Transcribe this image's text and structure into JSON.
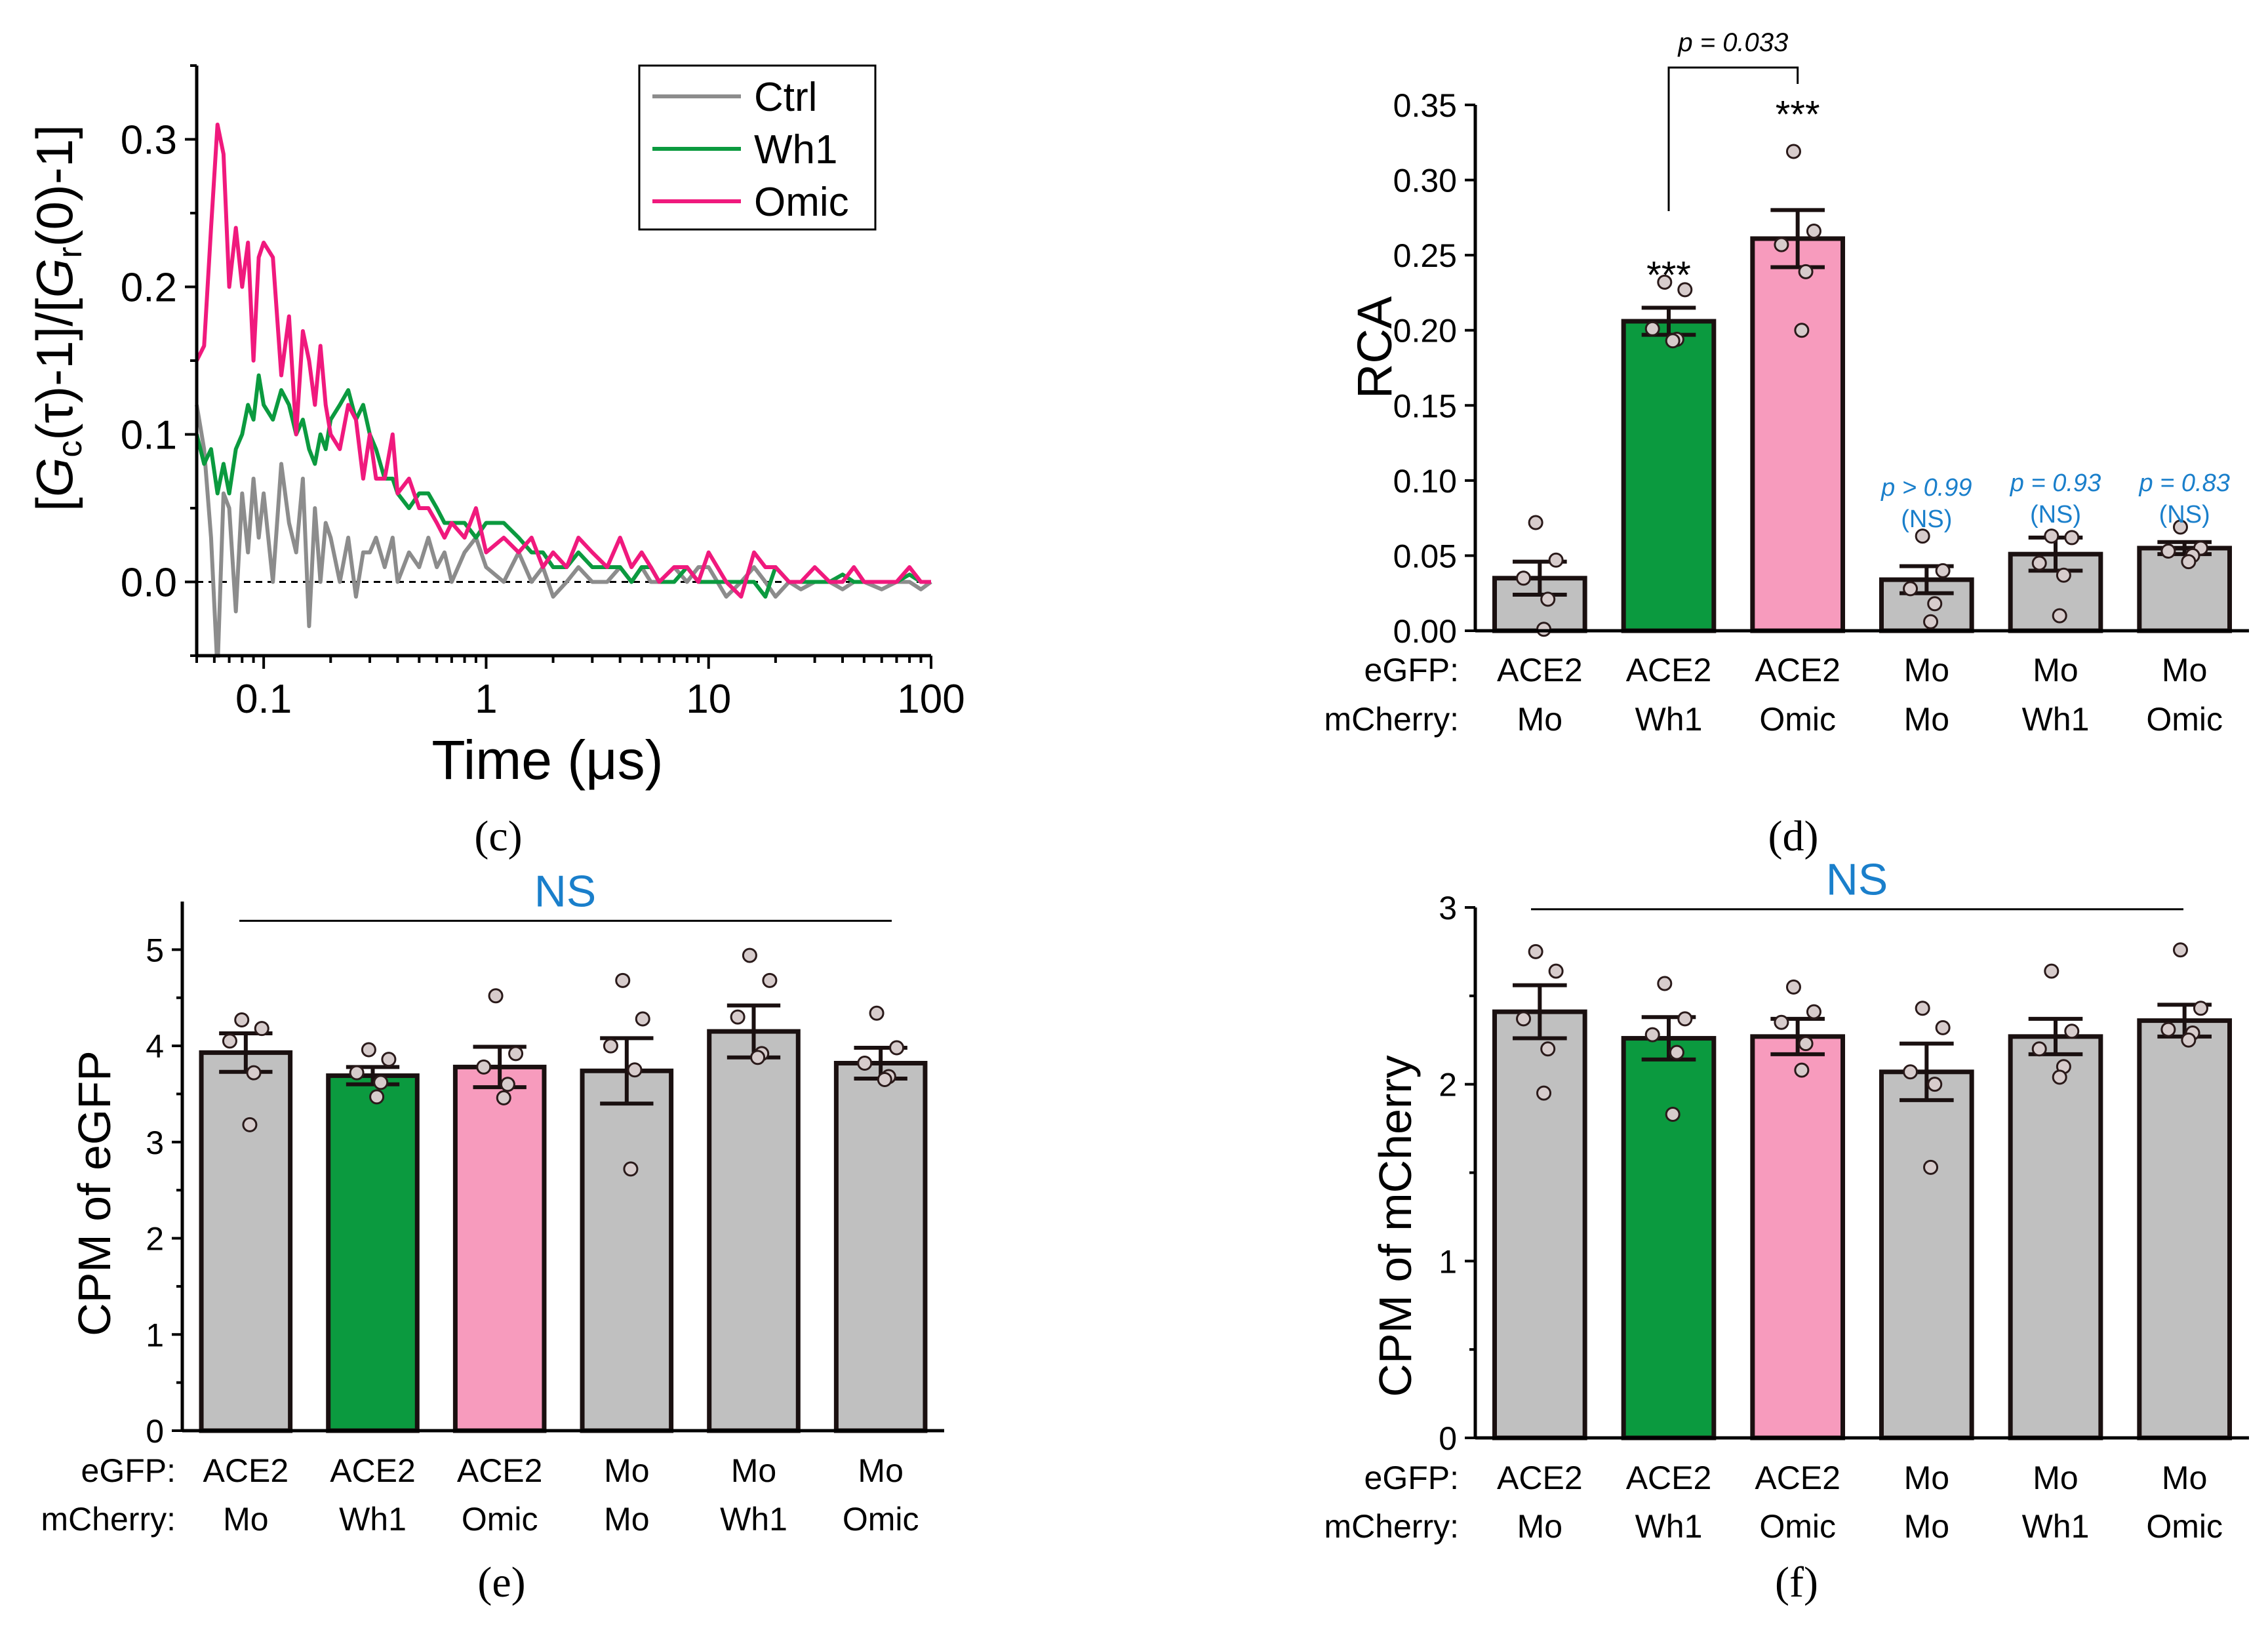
{
  "colors": {
    "ctrl": "#8c8c8c",
    "wh1": "#0b9a3f",
    "omic": "#f0197d",
    "gray_bar": "#c0c0c0",
    "green_bar": "#0b9a3f",
    "pink_bar": "#f79bbd",
    "stat_blue": "#1a7fcb"
  },
  "panel_labels": {
    "c": "(c)",
    "d": "(d)",
    "e": "(e)",
    "f": "(f)"
  },
  "chart_data": [
    {
      "id": "c",
      "type": "line",
      "xlabel": "Time (μs)",
      "ylabel": "[Gc(τ)-1]/[Gr(0)-1]",
      "ylabel_parts": {
        "a": "[",
        "b": "G",
        "c": "c",
        "d": "(τ)-1]/[",
        "e": "G",
        "f": "r",
        "g": "(0)-1]"
      },
      "xscale": "log",
      "xlim": [
        0.05,
        100
      ],
      "ylim": [
        -0.05,
        0.35
      ],
      "xticks": [
        0.1,
        1,
        10,
        100
      ],
      "xtick_labels": [
        "0.1",
        "1",
        "10",
        "100"
      ],
      "yticks": [
        0.0,
        0.1,
        0.2,
        0.3
      ],
      "ytick_labels": [
        "0.0",
        "0.1",
        "0.2",
        "0.3"
      ],
      "reference_line_y": 0.0,
      "legend": {
        "position": "top-right",
        "entries": [
          "Ctrl",
          "Wh1",
          "Omic"
        ]
      },
      "x": [
        0.05,
        0.054,
        0.058,
        0.062,
        0.066,
        0.07,
        0.075,
        0.08,
        0.085,
        0.09,
        0.095,
        0.1,
        0.11,
        0.12,
        0.13,
        0.14,
        0.15,
        0.16,
        0.17,
        0.18,
        0.19,
        0.2,
        0.22,
        0.24,
        0.26,
        0.28,
        0.3,
        0.32,
        0.35,
        0.38,
        0.4,
        0.45,
        0.5,
        0.55,
        0.6,
        0.65,
        0.7,
        0.8,
        0.9,
        1.0,
        1.2,
        1.4,
        1.6,
        1.8,
        2.0,
        2.3,
        2.6,
        3.0,
        3.5,
        4.0,
        4.5,
        5.0,
        5.5,
        6,
        7,
        8,
        9,
        10,
        12,
        14,
        16,
        18,
        20,
        23,
        26,
        30,
        35,
        40,
        45,
        50,
        60,
        70,
        80,
        90,
        100
      ],
      "series": [
        {
          "name": "Ctrl",
          "color_key": "ctrl",
          "values": [
            0.12,
            0.09,
            0.03,
            -0.06,
            0.06,
            0.05,
            -0.02,
            0.06,
            0.02,
            0.07,
            0.03,
            0.06,
            0.0,
            0.08,
            0.04,
            0.02,
            0.07,
            -0.03,
            0.05,
            0.0,
            0.04,
            0.03,
            0.0,
            0.03,
            -0.01,
            0.02,
            0.02,
            0.03,
            0.01,
            0.03,
            0.0,
            0.02,
            0.01,
            0.03,
            0.01,
            0.02,
            0.0,
            0.02,
            0.03,
            0.01,
            0.0,
            0.02,
            0.0,
            0.01,
            -0.01,
            0.0,
            0.01,
            0.0,
            0.0,
            0.01,
            0.0,
            0.01,
            0.0,
            0.0,
            0.01,
            0.0,
            0.01,
            0.01,
            -0.01,
            0.0,
            0.01,
            0.0,
            -0.01,
            0.0,
            -0.005,
            0.0,
            0.0,
            -0.005,
            0.0,
            0.0,
            -0.005,
            0.0,
            0.0,
            -0.005,
            0.0
          ]
        },
        {
          "name": "Wh1",
          "color_key": "wh1",
          "values": [
            0.1,
            0.08,
            0.09,
            0.06,
            0.08,
            0.06,
            0.09,
            0.1,
            0.12,
            0.11,
            0.14,
            0.12,
            0.11,
            0.13,
            0.12,
            0.1,
            0.11,
            0.09,
            0.08,
            0.1,
            0.09,
            0.11,
            0.12,
            0.13,
            0.11,
            0.12,
            0.1,
            0.09,
            0.07,
            0.07,
            0.06,
            0.05,
            0.06,
            0.06,
            0.05,
            0.04,
            0.04,
            0.04,
            0.03,
            0.04,
            0.04,
            0.03,
            0.02,
            0.02,
            0.01,
            0.01,
            0.02,
            0.01,
            0.01,
            0.01,
            0.0,
            0.01,
            0.01,
            0.0,
            0.0,
            0.01,
            0.0,
            0.0,
            0.0,
            0.0,
            0.0,
            -0.01,
            0.01,
            0.0,
            0.0,
            0.0,
            0.0,
            0.005,
            0.0,
            0.0,
            0.0,
            0.0,
            0.005,
            0.0,
            0.0
          ]
        },
        {
          "name": "Omic",
          "color_key": "omic",
          "values": [
            0.15,
            0.16,
            0.24,
            0.31,
            0.29,
            0.2,
            0.24,
            0.2,
            0.23,
            0.15,
            0.22,
            0.23,
            0.22,
            0.14,
            0.18,
            0.1,
            0.17,
            0.15,
            0.12,
            0.16,
            0.12,
            0.1,
            0.09,
            0.12,
            0.11,
            0.07,
            0.1,
            0.07,
            0.07,
            0.1,
            0.06,
            0.07,
            0.05,
            0.05,
            0.04,
            0.03,
            0.04,
            0.03,
            0.05,
            0.02,
            0.03,
            0.02,
            0.03,
            0.01,
            0.02,
            0.01,
            0.03,
            0.02,
            0.01,
            0.03,
            0.01,
            0.02,
            0.01,
            0.0,
            0.01,
            0.01,
            0.0,
            0.02,
            0.0,
            -0.01,
            0.02,
            0.01,
            0.01,
            0.0,
            0.0,
            0.01,
            0.0,
            0.0,
            0.01,
            0.0,
            0.0,
            0.0,
            0.01,
            0.0,
            0.0
          ]
        }
      ]
    },
    {
      "id": "d",
      "type": "bar",
      "ylabel": "RCA",
      "ylim": [
        0,
        0.35
      ],
      "yticks": [
        0.0,
        0.05,
        0.1,
        0.15,
        0.2,
        0.25,
        0.3,
        0.35
      ],
      "ytick_labels": [
        "0.00",
        "0.05",
        "0.10",
        "0.15",
        "0.20",
        "0.25",
        "0.30",
        "0.35"
      ],
      "row_labels": [
        "eGFP:",
        "mCherry:"
      ],
      "categories": [
        {
          "egfp": "ACE2",
          "mcherry": "Mo",
          "fill_key": "gray_bar"
        },
        {
          "egfp": "ACE2",
          "mcherry": "Wh1",
          "fill_key": "green_bar"
        },
        {
          "egfp": "ACE2",
          "mcherry": "Omic",
          "fill_key": "pink_bar"
        },
        {
          "egfp": "Mo",
          "mcherry": "Mo",
          "fill_key": "gray_bar"
        },
        {
          "egfp": "Mo",
          "mcherry": "Wh1",
          "fill_key": "gray_bar"
        },
        {
          "egfp": "Mo",
          "mcherry": "Omic",
          "fill_key": "gray_bar"
        }
      ],
      "values": [
        0.035,
        0.206,
        0.261,
        0.034,
        0.051,
        0.055
      ],
      "sem": [
        0.011,
        0.009,
        0.019,
        0.009,
        0.011,
        0.004
      ],
      "points": [
        [
          0.072,
          0.047,
          0.035,
          0.021,
          0.001
        ],
        [
          0.232,
          0.227,
          0.201,
          0.194,
          0.193
        ],
        [
          0.319,
          0.266,
          0.257,
          0.239,
          0.2
        ],
        [
          0.063,
          0.04,
          0.028,
          0.018,
          0.006
        ],
        [
          0.063,
          0.062,
          0.045,
          0.037,
          0.01
        ],
        [
          0.069,
          0.055,
          0.053,
          0.05,
          0.046
        ]
      ],
      "annotations": [
        {
          "bar": 1,
          "text": "***",
          "color_key": null,
          "value_at": 0.228
        },
        {
          "bar": 2,
          "text": "***",
          "color_key": null,
          "value_at": 0.335
        },
        {
          "bar": 3,
          "text": "p > 0.99",
          "sub": "(NS)",
          "color_key": "stat_blue",
          "value_at": 0.09
        },
        {
          "bar": 4,
          "text": "p = 0.93",
          "sub": "(NS)",
          "color_key": "stat_blue",
          "value_at": 0.093
        },
        {
          "bar": 5,
          "text": "p = 0.83",
          "sub": "(NS)",
          "color_key": "stat_blue",
          "value_at": 0.093
        }
      ],
      "bracket": {
        "from_bar": 1,
        "to_bar": 2,
        "text": "p = 0.033",
        "value_at": 0.377
      }
    },
    {
      "id": "e",
      "type": "bar",
      "ylabel": "CPM of eGFP",
      "ylim": [
        0,
        5.5
      ],
      "yticks": [
        0,
        1,
        2,
        3,
        4,
        5
      ],
      "ytick_labels": [
        "0",
        "1",
        "2",
        "3",
        "4",
        "5"
      ],
      "row_labels": [
        "eGFP:",
        "mCherry:"
      ],
      "categories": [
        {
          "egfp": "ACE2",
          "mcherry": "Mo",
          "fill_key": "gray_bar"
        },
        {
          "egfp": "ACE2",
          "mcherry": "Wh1",
          "fill_key": "green_bar"
        },
        {
          "egfp": "ACE2",
          "mcherry": "Omic",
          "fill_key": "pink_bar"
        },
        {
          "egfp": "Mo",
          "mcherry": "Mo",
          "fill_key": "gray_bar"
        },
        {
          "egfp": "Mo",
          "mcherry": "Wh1",
          "fill_key": "gray_bar"
        },
        {
          "egfp": "Mo",
          "mcherry": "Omic",
          "fill_key": "gray_bar"
        }
      ],
      "values": [
        3.93,
        3.69,
        3.78,
        3.74,
        4.15,
        3.82
      ],
      "sem": [
        0.2,
        0.09,
        0.21,
        0.34,
        0.27,
        0.16
      ],
      "points": [
        [
          4.27,
          4.18,
          4.05,
          3.72,
          3.18
        ],
        [
          3.96,
          3.86,
          3.72,
          3.62,
          3.47
        ],
        [
          4.52,
          3.92,
          3.78,
          3.6,
          3.46
        ],
        [
          4.68,
          4.28,
          4.0,
          3.75,
          2.72
        ],
        [
          4.94,
          4.68,
          4.3,
          3.92,
          3.88
        ],
        [
          4.34,
          3.98,
          3.82,
          3.68,
          3.65
        ]
      ],
      "ns_label": "NS",
      "ns_line_value": 5.3
    },
    {
      "id": "f",
      "type": "bar",
      "ylabel": "CPM of mCherry",
      "ylim": [
        0,
        3
      ],
      "yticks": [
        0,
        1,
        2,
        3
      ],
      "ytick_labels": [
        "0",
        "1",
        "2",
        "3"
      ],
      "row_labels": [
        "eGFP:",
        "mCherry:"
      ],
      "categories": [
        {
          "egfp": "ACE2",
          "mcherry": "Mo",
          "fill_key": "gray_bar"
        },
        {
          "egfp": "ACE2",
          "mcherry": "Wh1",
          "fill_key": "green_bar"
        },
        {
          "egfp": "ACE2",
          "mcherry": "Omic",
          "fill_key": "pink_bar"
        },
        {
          "egfp": "Mo",
          "mcherry": "Mo",
          "fill_key": "gray_bar"
        },
        {
          "egfp": "Mo",
          "mcherry": "Wh1",
          "fill_key": "gray_bar"
        },
        {
          "egfp": "Mo",
          "mcherry": "Omic",
          "fill_key": "gray_bar"
        }
      ],
      "values": [
        2.41,
        2.26,
        2.27,
        2.07,
        2.27,
        2.36
      ],
      "sem": [
        0.15,
        0.12,
        0.1,
        0.16,
        0.1,
        0.09
      ],
      "points": [
        [
          2.75,
          2.64,
          2.37,
          2.2,
          1.95
        ],
        [
          2.57,
          2.37,
          2.28,
          2.18,
          1.83
        ],
        [
          2.55,
          2.41,
          2.35,
          2.23,
          2.08
        ],
        [
          2.43,
          2.32,
          2.07,
          2.0,
          1.53
        ],
        [
          2.64,
          2.3,
          2.2,
          2.1,
          2.04
        ],
        [
          2.76,
          2.43,
          2.31,
          2.29,
          2.25
        ]
      ],
      "ns_label": "NS",
      "ns_line_value": 2.99
    }
  ]
}
